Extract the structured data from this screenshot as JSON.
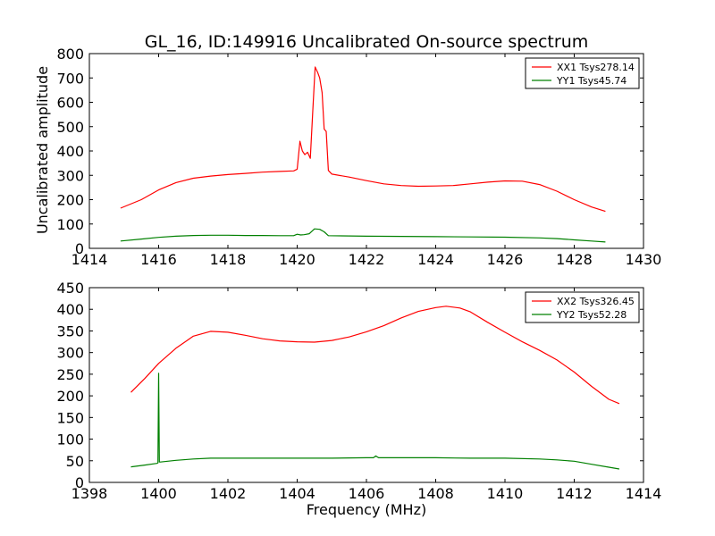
{
  "figure": {
    "title": "GL_16, ID:149916 Uncalibrated On-source spectrum",
    "xlabel": "Frequency (MHz)",
    "ylabel": "Uncalibrated amplitude"
  },
  "colors": {
    "red": "#ff0000",
    "green": "#008000",
    "axis": "#000000"
  },
  "chart_data": [
    {
      "type": "line",
      "title": "GL_16, ID:149916 Uncalibrated On-source spectrum",
      "xlabel": "",
      "ylabel": "Uncalibrated amplitude",
      "xlim": [
        1414,
        1430
      ],
      "ylim": [
        0,
        800
      ],
      "xticks": [
        1414,
        1416,
        1418,
        1420,
        1422,
        1424,
        1426,
        1428,
        1430
      ],
      "yticks": [
        0,
        100,
        200,
        300,
        400,
        500,
        600,
        700,
        800
      ],
      "legend_position": "top-right",
      "series": [
        {
          "name": "XX1 Tsys278.14",
          "color": "#ff0000",
          "x": [
            1414.9,
            1415.5,
            1416,
            1416.5,
            1417,
            1417.5,
            1418,
            1418.5,
            1419,
            1419.5,
            1419.9,
            1420.0,
            1420.08,
            1420.15,
            1420.22,
            1420.3,
            1420.38,
            1420.45,
            1420.52,
            1420.6,
            1420.65,
            1420.72,
            1420.78,
            1420.84,
            1420.9,
            1421.0,
            1421.5,
            1422,
            1422.5,
            1423,
            1423.5,
            1424,
            1424.5,
            1425,
            1425.5,
            1426,
            1426.5,
            1427,
            1427.5,
            1428,
            1428.5,
            1428.9
          ],
          "y": [
            165,
            200,
            240,
            270,
            288,
            297,
            303,
            308,
            313,
            316,
            318,
            325,
            440,
            400,
            385,
            395,
            370,
            560,
            745,
            720,
            700,
            640,
            490,
            480,
            320,
            305,
            293,
            278,
            265,
            258,
            255,
            256,
            258,
            265,
            272,
            277,
            276,
            262,
            235,
            200,
            170,
            152
          ]
        },
        {
          "name": "YY1 Tsys45.74",
          "color": "#008000",
          "x": [
            1414.9,
            1415.5,
            1416,
            1416.5,
            1417,
            1417.5,
            1418,
            1418.5,
            1419,
            1419.5,
            1419.9,
            1420.0,
            1420.1,
            1420.2,
            1420.35,
            1420.5,
            1420.65,
            1420.78,
            1420.9,
            1421.5,
            1422,
            1423,
            1424,
            1425,
            1426,
            1427,
            1427.5,
            1428,
            1428.5,
            1428.9
          ],
          "y": [
            30,
            38,
            45,
            50,
            53,
            54,
            54,
            53,
            53,
            52,
            52,
            58,
            55,
            56,
            60,
            80,
            78,
            68,
            52,
            51,
            50,
            49,
            48,
            47,
            46,
            43,
            40,
            35,
            30,
            26
          ]
        }
      ]
    },
    {
      "type": "line",
      "title": "",
      "xlabel": "Frequency (MHz)",
      "ylabel": "",
      "xlim": [
        1398,
        1414
      ],
      "ylim": [
        0,
        450
      ],
      "xticks": [
        1398,
        1400,
        1402,
        1404,
        1406,
        1408,
        1410,
        1412,
        1414
      ],
      "yticks": [
        0,
        50,
        100,
        150,
        200,
        250,
        300,
        350,
        400,
        450
      ],
      "legend_position": "top-right",
      "series": [
        {
          "name": "XX2 Tsys326.45",
          "color": "#ff0000",
          "x": [
            1399.2,
            1399.6,
            1400,
            1400.5,
            1401,
            1401.5,
            1402,
            1402.5,
            1403,
            1403.5,
            1404,
            1404.5,
            1405,
            1405.5,
            1406,
            1406.5,
            1407,
            1407.5,
            1408,
            1408.3,
            1408.7,
            1409,
            1409.5,
            1410,
            1410.5,
            1411,
            1411.5,
            1412,
            1412.5,
            1413,
            1413.3
          ],
          "y": [
            208,
            240,
            275,
            310,
            338,
            349,
            347,
            340,
            332,
            327,
            325,
            324,
            328,
            336,
            348,
            362,
            380,
            395,
            404,
            407,
            403,
            394,
            370,
            347,
            325,
            305,
            283,
            255,
            222,
            192,
            182
          ]
        },
        {
          "name": "YY2 Tsys52.28",
          "color": "#008000",
          "x": [
            1399.2,
            1399.6,
            1399.95,
            1399.98,
            1400.0,
            1400.02,
            1400.05,
            1400.5,
            1401,
            1401.5,
            1402,
            1403,
            1404,
            1405,
            1406,
            1406.2,
            1406.27,
            1406.35,
            1407,
            1408,
            1409,
            1410,
            1411,
            1411.5,
            1412,
            1412.5,
            1413,
            1413.3
          ],
          "y": [
            36,
            40,
            44,
            45,
            252,
            47,
            47,
            51,
            54,
            56,
            56,
            56,
            56,
            56,
            57,
            57,
            61,
            57,
            57,
            57,
            56,
            56,
            54,
            52,
            49,
            42,
            35,
            31
          ]
        }
      ]
    }
  ]
}
